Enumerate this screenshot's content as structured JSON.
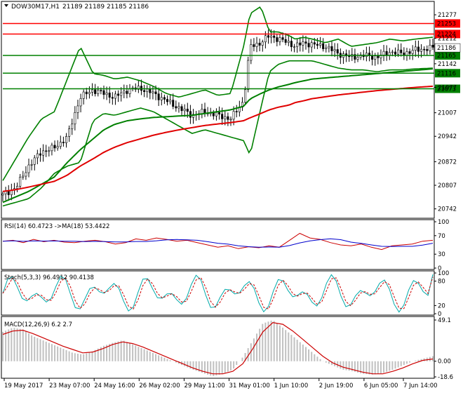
{
  "header": {
    "symbol": "DOW30M17,H1",
    "ohlc": "21189 21189 21185 21186"
  },
  "panels": {
    "rsi_label": "RSI(14) 60.4723 ->MA(18) 53.4422",
    "stoch_label": "Stoch(5,3,3) 96.4912 90.4138",
    "macd_label": "MACD(12,26,9) 6.2 2.7"
  },
  "colors": {
    "candles": "#000000",
    "bands": "#008000",
    "ma_slow": "#e00000",
    "ma_mid": "#008000",
    "price_box": "#008000",
    "level_red": "#ff0000",
    "rsi": "#cc0000",
    "rsi_ma": "#0000cc",
    "stoch_main": "#00aaaa",
    "stoch_signal": "#cc0000",
    "macd_hist": "#c0c0c0",
    "macd_signal": "#cc0000"
  },
  "chart_data": {
    "type": "candlestick",
    "symbol": "DOW30M17",
    "timeframe": "H1",
    "last_quote": {
      "open": 21189,
      "high": 21189,
      "low": 21185,
      "close": 21186
    },
    "price_axis_ticks": [
      "21277",
      "21212",
      "21142",
      "21077",
      "21007",
      "20942",
      "20872",
      "20807",
      "20742"
    ],
    "price_range": [
      20720,
      21310
    ],
    "time_axis_labels": [
      "19 May 2017",
      "23 May 07:00",
      "24 May 16:00",
      "26 May 02:00",
      "29 May 11:00",
      "31 May 01:00",
      "1 Jun 10:00",
      "2 Jun 19:00",
      "6 Jun 05:00",
      "7 Jun 14:00"
    ],
    "horizontal_levels": [
      {
        "value": 21253,
        "label": "21253",
        "color": "red"
      },
      {
        "value": 21224,
        "label": "21224",
        "color": "red"
      },
      {
        "value": 21165,
        "label": "21165",
        "color": "green"
      },
      {
        "value": 21116,
        "label": "21116",
        "color": "green"
      },
      {
        "value": 21073,
        "label": "21073",
        "color": "green"
      }
    ],
    "current_price_label": "21186",
    "price_series": {
      "x": [
        0,
        0.03,
        0.06,
        0.09,
        0.12,
        0.15,
        0.18,
        0.21,
        0.235,
        0.26,
        0.29,
        0.32,
        0.35,
        0.38,
        0.41,
        0.44,
        0.47,
        0.5,
        0.53,
        0.56,
        0.575,
        0.6,
        0.62,
        0.64,
        0.665,
        0.68,
        0.7,
        0.72,
        0.75,
        0.78,
        0.81,
        0.84,
        0.87,
        0.9,
        0.93,
        0.96,
        1.0
      ],
      "close": [
        20780,
        20800,
        20860,
        20900,
        20910,
        20940,
        21050,
        21070,
        21060,
        21050,
        21070,
        21075,
        21060,
        21040,
        21020,
        21000,
        21010,
        21000,
        20990,
        21040,
        21190,
        21200,
        21220,
        21210,
        21200,
        21190,
        21200,
        21195,
        21190,
        21170,
        21160,
        21165,
        21160,
        21175,
        21170,
        21180,
        21186
      ]
    },
    "bollinger_upper": [
      20820,
      20880,
      20940,
      20990,
      21010,
      21100,
      21190,
      21115,
      21110,
      21100,
      21105,
      21095,
      21080,
      21060,
      21050,
      21060,
      21070,
      21055,
      21060,
      21190,
      21280,
      21300,
      21230,
      21230,
      21220,
      21210,
      21215,
      21210,
      21200,
      21210,
      21190,
      21195,
      21200,
      21210,
      21205,
      21210,
      21215
    ],
    "bollinger_lower": [
      20750,
      20760,
      20770,
      20800,
      20840,
      20860,
      20870,
      20985,
      21005,
      21000,
      21010,
      21020,
      21010,
      20990,
      20970,
      20950,
      20960,
      20950,
      20940,
      20930,
      20890,
      21020,
      21120,
      21140,
      21150,
      21150,
      21150,
      21150,
      21140,
      21130,
      21125,
      21125,
      21120,
      21125,
      21125,
      21128,
      21130
    ],
    "ma_green": [
      20760,
      20775,
      20790,
      20810,
      20830,
      20870,
      20905,
      20935,
      20960,
      20975,
      20985,
      20990,
      20994,
      20996,
      20998,
      21000,
      21005,
      21010,
      21015,
      21025,
      21045,
      21060,
      21070,
      21078,
      21085,
      21090,
      21095,
      21100,
      21103,
      21106,
      21109,
      21112,
      21115,
      21118,
      21121,
      21124,
      21128
    ],
    "ma_red": [
      20790,
      20795,
      20802,
      20810,
      20818,
      20835,
      20860,
      20880,
      20898,
      20912,
      20925,
      20935,
      20945,
      20953,
      20960,
      20966,
      20972,
      20976,
      20980,
      20985,
      20993,
      21005,
      21015,
      21022,
      21028,
      21035,
      21040,
      21046,
      21051,
      21056,
      21060,
      21064,
      21068,
      21071,
      21074,
      21077,
      21080
    ],
    "rsi": {
      "period": 14,
      "value": 60.4723,
      "ma_period": 18,
      "ma_value": 53.4422,
      "axis_ticks": [
        "100",
        "70",
        "30",
        "0"
      ],
      "values": [
        58,
        60,
        55,
        62,
        57,
        60,
        56,
        55,
        58,
        60,
        57,
        52,
        55,
        63,
        60,
        65,
        62,
        58,
        60,
        55,
        50,
        45,
        48,
        42,
        46,
        44,
        48,
        45,
        60,
        75,
        65,
        62,
        55,
        50,
        48,
        52,
        45,
        40,
        48,
        50,
        52,
        58,
        60
      ]
    },
    "stochastic": {
      "params": "5,3,3",
      "main": 96.4912,
      "signal": 90.4138,
      "axis_ticks": [
        "100",
        "80",
        "20",
        "0"
      ]
    },
    "macd": {
      "params": "12,26,9",
      "main": 6.2,
      "signal": 2.7,
      "axis_ticks": [
        "49.1",
        "0.00",
        "-18.6"
      ],
      "hist": [
        35,
        40,
        38,
        30,
        25,
        20,
        15,
        10,
        8,
        12,
        18,
        22,
        25,
        20,
        15,
        10,
        5,
        0,
        -5,
        -10,
        -14,
        -18,
        -15,
        -10,
        5,
        25,
        45,
        49,
        40,
        30,
        20,
        10,
        0,
        -5,
        -10,
        -12,
        -15,
        -16,
        -14,
        -10,
        -5,
        0,
        3,
        6
      ],
      "signal_values": [
        32,
        36,
        37,
        33,
        28,
        23,
        18,
        14,
        10,
        11,
        15,
        20,
        23,
        21,
        17,
        12,
        7,
        2,
        -3,
        -8,
        -12,
        -15,
        -15,
        -12,
        -3,
        15,
        35,
        46,
        44,
        36,
        26,
        16,
        6,
        -2,
        -7,
        -10,
        -13,
        -15,
        -15,
        -12,
        -8,
        -3,
        1,
        2.7
      ]
    }
  }
}
